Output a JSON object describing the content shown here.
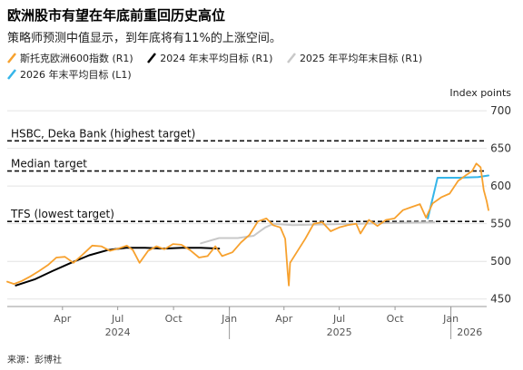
{
  "header": {
    "title": "欧洲股市有望在年底前重回历史高位",
    "subtitle": "策略师预测中值显示，到年底将有11%的上涨空间。"
  },
  "legend": {
    "items": [
      {
        "label": "斯托克欧洲600指数 (R1)",
        "color": "#f7a12e",
        "style": "solid"
      },
      {
        "label": "2024 年末平均目标 (R1)",
        "color": "#000000",
        "style": "solid"
      },
      {
        "label": "2025 年平均年末目标 (R1)",
        "color": "#c8c8c8",
        "style": "solid"
      },
      {
        "label": "2026 年末平均目标 (L1)",
        "color": "#35b5e9",
        "style": "solid"
      }
    ]
  },
  "source": "来源：彭博社",
  "chart_data": {
    "type": "line",
    "yaxis_title": "Index points",
    "ylim": [
      440,
      705
    ],
    "yticks": [
      450,
      500,
      550,
      600,
      650,
      700
    ],
    "x_month_ticks": [
      {
        "label": "Apr",
        "date": "2024-04-01"
      },
      {
        "label": "Jul",
        "date": "2024-07-01"
      },
      {
        "label": "Oct",
        "date": "2024-10-01"
      },
      {
        "label": "Jan",
        "date": "2025-01-01"
      },
      {
        "label": "Apr",
        "date": "2025-04-01"
      },
      {
        "label": "Jul",
        "date": "2025-07-01"
      },
      {
        "label": "Oct",
        "date": "2025-10-01"
      },
      {
        "label": "Jan",
        "date": "2026-01-01"
      }
    ],
    "x_year_labels": [
      {
        "label": "2024",
        "date": "2024-07-01"
      },
      {
        "label": "2025",
        "date": "2025-07-01"
      },
      {
        "label": "2026",
        "date": "2026-02-01"
      }
    ],
    "x_year_dividers": [
      "2025-01-01",
      "2026-01-01"
    ],
    "xlim": [
      "2024-01-01",
      "2026-03-01"
    ],
    "reference_lines": [
      {
        "label": "HSBC, Deka Bank (highest target)",
        "value": 660
      },
      {
        "label": "Median target",
        "value": 620
      },
      {
        "label": "TFS (lowest target)",
        "value": 553
      }
    ],
    "series": [
      {
        "name": "斯托克欧洲600指数 (R1)",
        "color": "#f7a12e",
        "points": [
          [
            "2024-01-01",
            473
          ],
          [
            "2024-01-12",
            470
          ],
          [
            "2024-01-25",
            474
          ],
          [
            "2024-02-08",
            480
          ],
          [
            "2024-02-22",
            487
          ],
          [
            "2024-03-08",
            495
          ],
          [
            "2024-03-22",
            505
          ],
          [
            "2024-04-05",
            506
          ],
          [
            "2024-04-19",
            498
          ],
          [
            "2024-05-03",
            508
          ],
          [
            "2024-05-20",
            521
          ],
          [
            "2024-06-04",
            520
          ],
          [
            "2024-06-18",
            514
          ],
          [
            "2024-07-02",
            517
          ],
          [
            "2024-07-16",
            521
          ],
          [
            "2024-07-26",
            515
          ],
          [
            "2024-08-06",
            498
          ],
          [
            "2024-08-20",
            514
          ],
          [
            "2024-09-03",
            520
          ],
          [
            "2024-09-16",
            516
          ],
          [
            "2024-09-30",
            523
          ],
          [
            "2024-10-14",
            522
          ],
          [
            "2024-10-28",
            515
          ],
          [
            "2024-11-12",
            505
          ],
          [
            "2024-11-26",
            507
          ],
          [
            "2024-12-09",
            520
          ],
          [
            "2024-12-20",
            507
          ],
          [
            "2025-01-06",
            512
          ],
          [
            "2025-01-20",
            525
          ],
          [
            "2025-02-03",
            535
          ],
          [
            "2025-02-17",
            553
          ],
          [
            "2025-03-03",
            557
          ],
          [
            "2025-03-14",
            548
          ],
          [
            "2025-03-26",
            545
          ],
          [
            "2025-04-03",
            530
          ],
          [
            "2025-04-07",
            486
          ],
          [
            "2025-04-09",
            468
          ],
          [
            "2025-04-11",
            498
          ],
          [
            "2025-04-22",
            512
          ],
          [
            "2025-05-06",
            530
          ],
          [
            "2025-05-20",
            550
          ],
          [
            "2025-06-03",
            552
          ],
          [
            "2025-06-17",
            540
          ],
          [
            "2025-07-01",
            545
          ],
          [
            "2025-07-15",
            548
          ],
          [
            "2025-07-29",
            550
          ],
          [
            "2025-08-05",
            537
          ],
          [
            "2025-08-19",
            555
          ],
          [
            "2025-09-02",
            547
          ],
          [
            "2025-09-16",
            555
          ],
          [
            "2025-09-30",
            557
          ],
          [
            "2025-10-14",
            568
          ],
          [
            "2025-10-28",
            572
          ],
          [
            "2025-11-11",
            576
          ],
          [
            "2025-11-21",
            558
          ],
          [
            "2025-12-02",
            577
          ],
          [
            "2025-12-16",
            585
          ],
          [
            "2025-12-30",
            590
          ],
          [
            "2026-01-13",
            607
          ],
          [
            "2026-01-27",
            615
          ],
          [
            "2026-02-05",
            620
          ],
          [
            "2026-02-12",
            630
          ],
          [
            "2026-02-19",
            625
          ],
          [
            "2026-02-24",
            595
          ],
          [
            "2026-03-01",
            580
          ],
          [
            "2026-03-04",
            568
          ]
        ]
      },
      {
        "name": "2024 年末平均目标 (R1)",
        "color": "#000000",
        "points": [
          [
            "2024-01-15",
            468
          ],
          [
            "2024-02-15",
            476
          ],
          [
            "2024-03-15",
            487
          ],
          [
            "2024-04-15",
            498
          ],
          [
            "2024-05-15",
            508
          ],
          [
            "2024-06-15",
            515
          ],
          [
            "2024-07-15",
            518
          ],
          [
            "2024-08-15",
            518
          ],
          [
            "2024-09-15",
            517
          ],
          [
            "2024-10-15",
            518
          ],
          [
            "2024-11-15",
            518
          ],
          [
            "2024-12-15",
            517
          ]
        ]
      },
      {
        "name": "2025 年平均年末目标 (R1)",
        "color": "#c8c8c8",
        "points": [
          [
            "2024-11-15",
            524
          ],
          [
            "2024-12-15",
            531
          ],
          [
            "2025-01-15",
            531
          ],
          [
            "2025-02-10",
            534
          ],
          [
            "2025-03-01",
            545
          ],
          [
            "2025-03-15",
            550
          ],
          [
            "2025-04-15",
            548
          ],
          [
            "2025-06-01",
            549
          ],
          [
            "2025-08-01",
            550
          ],
          [
            "2025-10-01",
            551
          ],
          [
            "2025-12-05",
            552
          ]
        ]
      },
      {
        "name": "2026 年末平均目标 (L1)",
        "color": "#35b5e9",
        "points": [
          [
            "2025-11-24",
            557
          ],
          [
            "2025-12-10",
            611
          ],
          [
            "2026-01-15",
            611
          ],
          [
            "2026-02-15",
            612
          ],
          [
            "2026-03-04",
            614
          ]
        ]
      }
    ]
  }
}
